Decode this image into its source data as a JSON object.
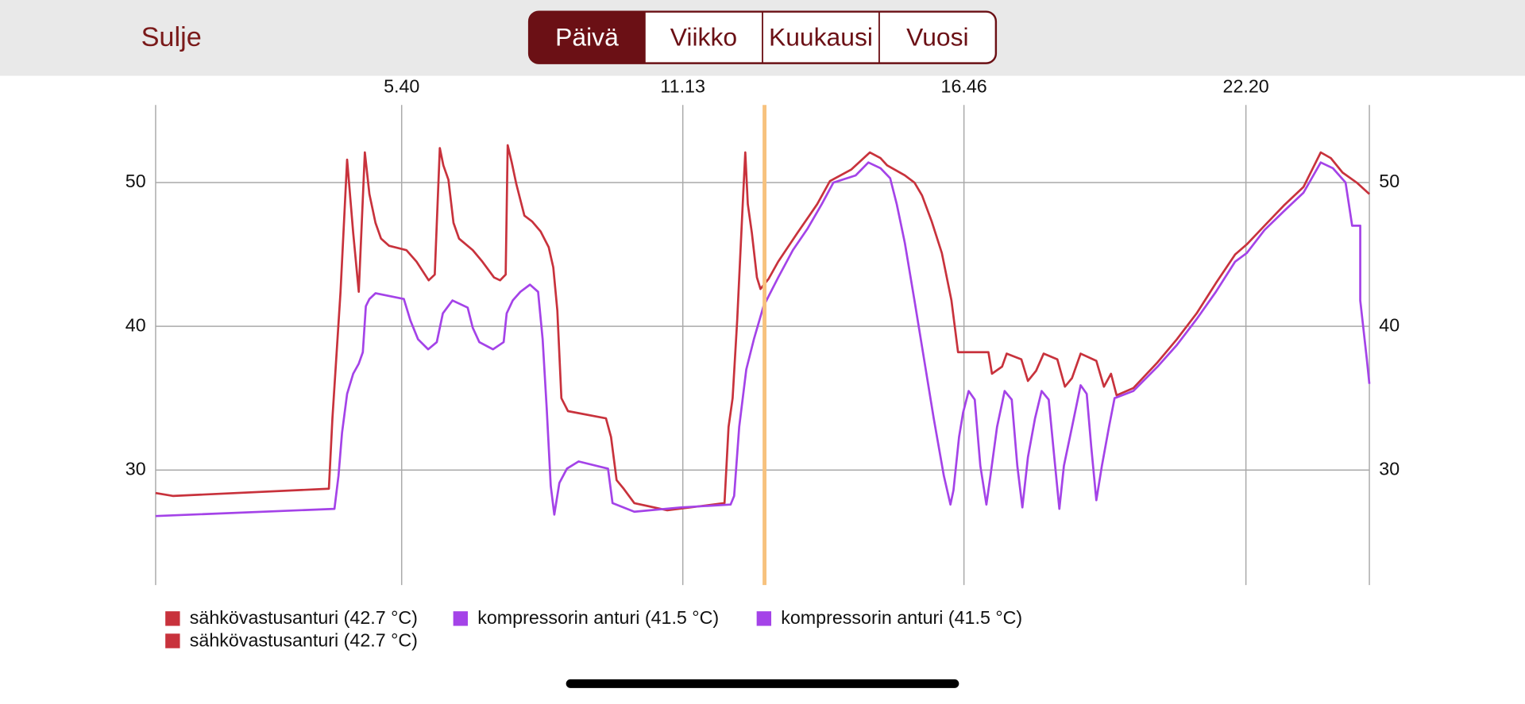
{
  "header": {
    "close": "Sulje",
    "tabs": [
      "Päivä",
      "Viikko",
      "Kuukausi",
      "Vuosi"
    ],
    "selected_tab": 0
  },
  "chart_data": {
    "type": "line",
    "xlim": [
      0.81,
      24.77
    ],
    "xticks": [
      {
        "value": 5.667,
        "label": "5.40"
      },
      {
        "value": 11.217,
        "label": "11.13"
      },
      {
        "value": 16.767,
        "label": "16.46"
      },
      {
        "value": 22.333,
        "label": "22.20"
      }
    ],
    "ylim": [
      22,
      55.4
    ],
    "yticks": [
      30,
      40,
      50
    ],
    "grid": true,
    "cursor_x": 12.83,
    "cursor_color": "#f7c27e",
    "series": [
      {
        "color": "#c8323c",
        "x": [
          0.81,
          1.15,
          4.23,
          4.3,
          4.46,
          4.59,
          4.71,
          4.82,
          4.94,
          5.03,
          5.15,
          5.26,
          5.42,
          5.76,
          5.96,
          6.2,
          6.32,
          6.42,
          6.49,
          6.59,
          6.69,
          6.8,
          7.07,
          7.26,
          7.49,
          7.61,
          7.72,
          7.76,
          7.84,
          7.93,
          8.09,
          8.24,
          8.41,
          8.57,
          8.66,
          8.74,
          8.82,
          8.95,
          9.7,
          9.8,
          9.91,
          10.05,
          10.26,
          10.91,
          12.04,
          12.12,
          12.2,
          12.29,
          12.39,
          12.45,
          12.5,
          12.58,
          12.68,
          12.75,
          12.91,
          13.1,
          13.48,
          13.87,
          14.12,
          14.54,
          14.91,
          15.12,
          15.25,
          15.6,
          15.79,
          15.94,
          16.13,
          16.33,
          16.52,
          16.65,
          17.25,
          17.32,
          17.52,
          17.61,
          17.9,
          18.03,
          18.19,
          18.34,
          18.61,
          18.76,
          18.9,
          19.07,
          19.38,
          19.53,
          19.67,
          19.78,
          20.11,
          20.59,
          20.97,
          21.36,
          21.74,
          22.12,
          22.35,
          22.7,
          23.08,
          23.47,
          23.81,
          24.01,
          24.24,
          24.52,
          24.77
        ],
        "values": [
          28.4,
          28.2,
          28.7,
          33.6,
          42.4,
          51.6,
          46.5,
          42.4,
          52.1,
          49.2,
          47.2,
          46.1,
          45.6,
          45.3,
          44.5,
          43.2,
          43.6,
          52.4,
          51.2,
          50.2,
          47.2,
          46.1,
          45.3,
          44.5,
          43.4,
          43.2,
          43.6,
          52.6,
          51.4,
          49.9,
          47.7,
          47.3,
          46.6,
          45.5,
          44.1,
          41.1,
          35.0,
          34.1,
          33.6,
          32.3,
          29.3,
          28.7,
          27.7,
          27.2,
          27.7,
          33.0,
          35.0,
          40.4,
          47.8,
          52.1,
          48.5,
          46.5,
          43.4,
          42.6,
          43.3,
          44.5,
          46.5,
          48.5,
          50.1,
          50.9,
          52.1,
          51.7,
          51.2,
          50.5,
          50.0,
          49.1,
          47.3,
          45.1,
          41.8,
          38.2,
          38.2,
          36.7,
          37.2,
          38.1,
          37.7,
          36.2,
          36.9,
          38.1,
          37.7,
          35.8,
          36.4,
          38.1,
          37.6,
          35.8,
          36.7,
          35.2,
          35.7,
          37.5,
          39.1,
          40.9,
          43.0,
          45.0,
          45.7,
          47.0,
          48.4,
          49.7,
          52.1,
          51.7,
          50.7,
          50.0,
          49.2
        ]
      },
      {
        "color": "#a443e8",
        "x": [
          0.81,
          4.34,
          4.42,
          4.49,
          4.59,
          4.71,
          4.82,
          4.9,
          4.96,
          5.03,
          5.15,
          5.71,
          5.84,
          5.99,
          6.19,
          6.36,
          6.48,
          6.67,
          6.97,
          7.07,
          7.2,
          7.47,
          7.68,
          7.74,
          7.86,
          8.01,
          8.2,
          8.36,
          8.45,
          8.53,
          8.61,
          8.68,
          8.78,
          8.93,
          9.16,
          9.74,
          9.83,
          10.26,
          11.18,
          12.16,
          12.23,
          12.33,
          12.47,
          12.62,
          12.81,
          13.1,
          13.39,
          13.68,
          13.96,
          14.19,
          14.63,
          14.88,
          15.12,
          15.31,
          15.44,
          15.6,
          15.79,
          15.98,
          16.17,
          16.37,
          16.5,
          16.56,
          16.67,
          16.75,
          16.86,
          16.98,
          17.09,
          17.21,
          17.29,
          17.42,
          17.57,
          17.71,
          17.82,
          17.92,
          18.03,
          18.17,
          18.3,
          18.44,
          18.55,
          18.65,
          18.74,
          18.9,
          19.07,
          19.19,
          19.28,
          19.38,
          19.49,
          19.63,
          19.74,
          20.11,
          20.59,
          20.97,
          21.36,
          21.74,
          22.12,
          22.35,
          22.7,
          23.08,
          23.47,
          23.81,
          24.05,
          24.3,
          24.43,
          24.59,
          24.59,
          24.72,
          24.77
        ],
        "values": [
          26.8,
          27.3,
          29.6,
          32.6,
          35.3,
          36.7,
          37.4,
          38.2,
          41.4,
          41.9,
          42.3,
          41.9,
          40.4,
          39.1,
          38.4,
          38.9,
          40.9,
          41.8,
          41.3,
          39.9,
          38.9,
          38.4,
          38.9,
          40.9,
          41.8,
          42.4,
          42.9,
          42.4,
          39.1,
          34.3,
          28.9,
          26.9,
          29.1,
          30.1,
          30.6,
          30.1,
          27.7,
          27.1,
          27.4,
          27.6,
          28.2,
          33.0,
          37.0,
          39.1,
          41.4,
          43.4,
          45.3,
          46.8,
          48.5,
          50.0,
          50.5,
          51.4,
          51.0,
          50.3,
          48.5,
          45.8,
          41.8,
          37.7,
          33.6,
          29.6,
          27.6,
          28.6,
          32.3,
          34.0,
          35.5,
          34.9,
          30.3,
          27.6,
          29.6,
          33.0,
          35.5,
          34.9,
          30.3,
          27.4,
          30.9,
          33.6,
          35.5,
          34.9,
          30.9,
          27.3,
          30.3,
          33.0,
          35.9,
          35.3,
          31.6,
          27.9,
          30.3,
          33.0,
          35.0,
          35.5,
          37.2,
          38.7,
          40.5,
          42.4,
          44.5,
          45.1,
          46.7,
          48.0,
          49.3,
          51.4,
          51.0,
          50.0,
          47.0,
          47.0,
          41.8,
          37.7,
          36.0
        ]
      }
    ],
    "legend": [
      {
        "name": "sähkövastusanturi (42.7 °C)",
        "color": "#c8323c"
      },
      {
        "name": "kompressorin anturi (41.5 °C)",
        "color": "#a443e8"
      },
      {
        "name": "kompressorin anturi (41.5 °C)",
        "color": "#a443e8"
      },
      {
        "name": "sähkövastusanturi (42.7 °C)",
        "color": "#c8323c"
      }
    ]
  }
}
